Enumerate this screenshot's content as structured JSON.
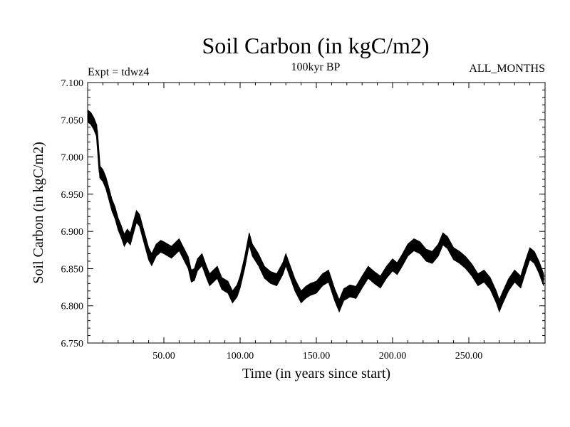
{
  "chart_data": {
    "type": "line",
    "title": "Soil Carbon (in kgC/m2)",
    "subtitle": "100kyr BP",
    "annotations": {
      "left": "Expt = tdwz4",
      "right": "ALL_MONTHS"
    },
    "xlabel": "Time (in years since start)",
    "ylabel": "Soil Carbon (in kgC/m2)",
    "xlim": [
      0,
      300
    ],
    "ylim": [
      6.75,
      7.1
    ],
    "x_ticks": [
      50,
      100,
      150,
      200,
      250
    ],
    "x_tick_labels": [
      "50.00",
      "100.00",
      "150.00",
      "200.00",
      "250.00"
    ],
    "y_ticks": [
      6.75,
      6.8,
      6.85,
      6.9,
      6.95,
      7.0,
      7.05,
      7.1
    ],
    "y_tick_labels": [
      "6.750",
      "6.800",
      "6.850",
      "6.900",
      "6.950",
      "7.000",
      "7.050",
      "7.100"
    ],
    "grid": false,
    "line_color": "#000000",
    "band_halfwidth": 0.008,
    "series": [
      {
        "x": [
          0,
          2,
          4,
          6,
          8,
          10,
          12,
          14,
          16,
          18,
          20,
          22,
          24,
          26,
          28,
          30,
          32,
          34,
          36,
          38,
          40,
          42,
          45,
          48,
          50,
          55,
          60,
          63,
          66,
          68,
          70,
          72,
          75,
          78,
          80,
          85,
          88,
          92,
          95,
          98,
          100,
          103,
          106,
          108,
          112,
          116,
          120,
          124,
          128,
          130,
          133,
          136,
          140,
          143,
          146,
          150,
          154,
          158,
          162,
          165,
          168,
          172,
          176,
          180,
          184,
          188,
          192,
          196,
          200,
          203,
          206,
          210,
          214,
          218,
          222,
          226,
          230,
          233,
          236,
          240,
          244,
          248,
          252,
          256,
          260,
          264,
          268,
          270,
          272,
          276,
          280,
          284,
          286,
          288,
          290,
          293,
          296,
          299
        ],
        "y": [
          7.055,
          7.052,
          7.045,
          7.035,
          6.98,
          6.975,
          6.965,
          6.95,
          6.935,
          6.925,
          6.91,
          6.9,
          6.888,
          6.895,
          6.89,
          6.905,
          6.92,
          6.915,
          6.9,
          6.885,
          6.87,
          6.862,
          6.875,
          6.88,
          6.878,
          6.872,
          6.882,
          6.87,
          6.858,
          6.84,
          6.842,
          6.855,
          6.862,
          6.845,
          6.835,
          6.845,
          6.83,
          6.825,
          6.812,
          6.82,
          6.832,
          6.858,
          6.89,
          6.875,
          6.862,
          6.845,
          6.838,
          6.835,
          6.85,
          6.862,
          6.845,
          6.828,
          6.812,
          6.818,
          6.822,
          6.825,
          6.835,
          6.84,
          6.815,
          6.8,
          6.815,
          6.82,
          6.818,
          6.832,
          6.845,
          6.838,
          6.832,
          6.845,
          6.855,
          6.85,
          6.86,
          6.875,
          6.882,
          6.878,
          6.868,
          6.865,
          6.875,
          6.89,
          6.885,
          6.87,
          6.865,
          6.858,
          6.848,
          6.835,
          6.84,
          6.83,
          6.812,
          6.8,
          6.81,
          6.828,
          6.84,
          6.832,
          6.845,
          6.858,
          6.87,
          6.865,
          6.852,
          6.835
        ]
      }
    ]
  }
}
